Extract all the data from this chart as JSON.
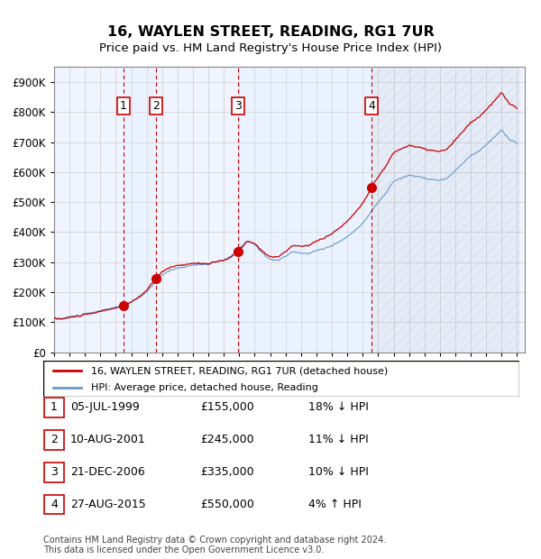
{
  "title": "16, WAYLEN STREET, READING, RG1 7UR",
  "subtitle": "Price paid vs. HM Land Registry's House Price Index (HPI)",
  "legend_line1": "16, WAYLEN STREET, READING, RG1 7UR (detached house)",
  "legend_line2": "HPI: Average price, detached house, Reading",
  "footer1": "Contains HM Land Registry data © Crown copyright and database right 2024.",
  "footer2": "This data is licensed under the Open Government Licence v3.0.",
  "sales": [
    {
      "num": 1,
      "date": "1999-07-05",
      "price": 155000,
      "label": "05-JUL-1999",
      "price_str": "£155,000",
      "pct": "18%",
      "dir": "↓",
      "rel": "HPI"
    },
    {
      "num": 2,
      "date": "2001-08-10",
      "price": 245000,
      "label": "10-AUG-2001",
      "price_str": "£245,000",
      "pct": "11%",
      "dir": "↓",
      "rel": "HPI"
    },
    {
      "num": 3,
      "date": "2006-12-21",
      "price": 335000,
      "label": "21-DEC-2006",
      "price_str": "£335,000",
      "pct": "10%",
      "dir": "↓",
      "rel": "HPI"
    },
    {
      "num": 4,
      "date": "2015-08-27",
      "price": 550000,
      "label": "27-AUG-2015",
      "price_str": "£550,000",
      "pct": "4%",
      "dir": "↑",
      "rel": "HPI"
    }
  ],
  "hpi_color": "#6699cc",
  "price_color": "#cc0000",
  "marker_color": "#cc0000",
  "vline_color": "#cc0000",
  "shade_color": "#ddeeff",
  "hatch_color": "#aabbcc",
  "grid_color": "#cccccc",
  "ylim": [
    0,
    950000
  ],
  "yticks": [
    0,
    100000,
    200000,
    300000,
    400000,
    500000,
    600000,
    700000,
    800000,
    900000
  ],
  "ylabel_format": "£{0}K",
  "background_color": "#ffffff",
  "plot_bg_color": "#f0f4ff"
}
